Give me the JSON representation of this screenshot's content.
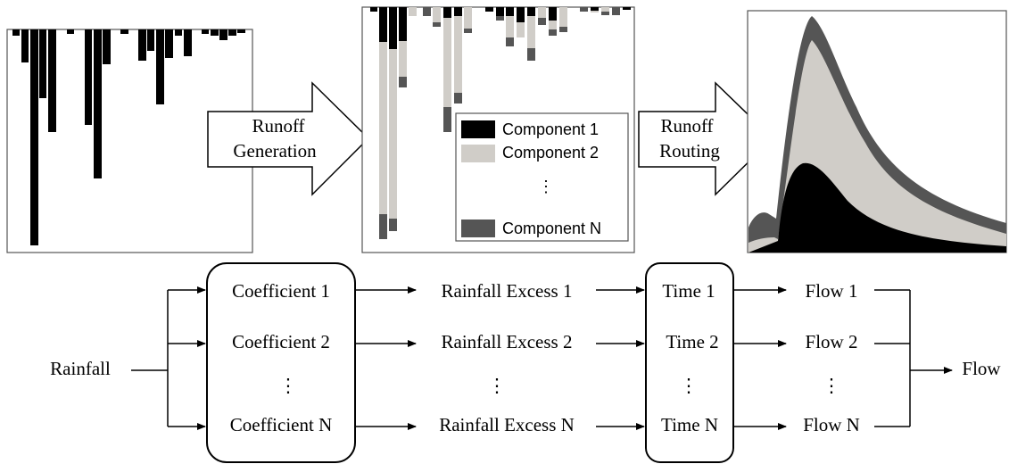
{
  "top": {
    "generation_label": [
      "Runoff",
      "Generation"
    ],
    "routing_label": [
      "Runoff",
      "Routing"
    ],
    "legend": [
      "Component 1",
      "Component 2",
      "⋮",
      "Component N"
    ]
  },
  "flow": {
    "input": "Rainfall",
    "coefficients": [
      "Coefficient 1",
      "Coefficient 2",
      "⋮",
      "Coefficient N"
    ],
    "excess": [
      "Rainfall Excess 1",
      "Rainfall Excess 2",
      "⋮",
      "Rainfall Excess N"
    ],
    "times": [
      "Time 1",
      "Time 2",
      "⋮",
      "Time N"
    ],
    "flows": [
      "Flow 1",
      "Flow 2",
      "⋮",
      "Flow N"
    ],
    "output": "Flow"
  }
}
